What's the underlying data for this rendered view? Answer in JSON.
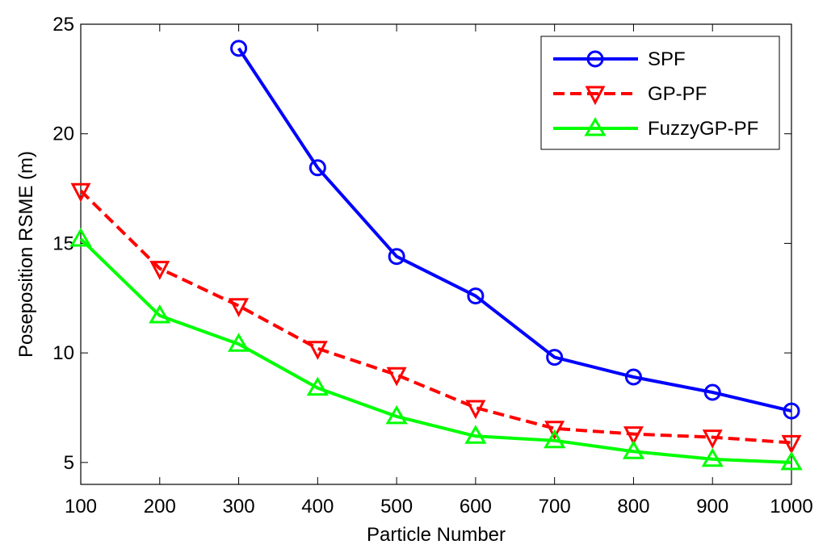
{
  "chart_data": {
    "type": "line",
    "title": "",
    "xlabel": "Particle Number",
    "ylabel": "Poseposition RSME (m)",
    "xlim": [
      100,
      1000
    ],
    "ylim": [
      4,
      25
    ],
    "xticks": [
      100,
      200,
      300,
      400,
      500,
      600,
      700,
      800,
      900,
      1000
    ],
    "xtick_labels": [
      "100",
      "200",
      "300",
      "400",
      "500",
      "600",
      "700",
      "800",
      "900",
      "1000"
    ],
    "yticks": [
      5,
      10,
      15,
      20,
      25
    ],
    "ytick_labels": [
      "5",
      "10",
      "15",
      "20",
      "25"
    ],
    "grid": false,
    "legend_position": "top-right",
    "series": [
      {
        "name": "SPF",
        "color": "#0000ff",
        "line_style": "solid",
        "marker": "circle",
        "x": [
          300,
          400,
          500,
          600,
          700,
          800,
          900,
          1000
        ],
        "values": [
          23.9,
          18.45,
          14.4,
          12.6,
          9.8,
          8.9,
          8.2,
          7.35
        ]
      },
      {
        "name": "GP-PF",
        "color": "#ff0000",
        "line_style": "dashed",
        "marker": "triangle-down",
        "x": [
          100,
          200,
          300,
          400,
          500,
          600,
          700,
          800,
          900,
          1000
        ],
        "values": [
          17.4,
          13.85,
          12.15,
          10.2,
          9.0,
          7.5,
          6.55,
          6.3,
          6.15,
          5.9
        ]
      },
      {
        "name": "FuzzyGP-PF",
        "color": "#00ff00",
        "line_style": "solid",
        "marker": "triangle-up",
        "x": [
          100,
          200,
          300,
          400,
          500,
          600,
          700,
          800,
          900,
          1000
        ],
        "values": [
          15.2,
          11.7,
          10.4,
          8.4,
          7.1,
          6.2,
          6.0,
          5.5,
          5.15,
          5.0
        ]
      }
    ]
  }
}
